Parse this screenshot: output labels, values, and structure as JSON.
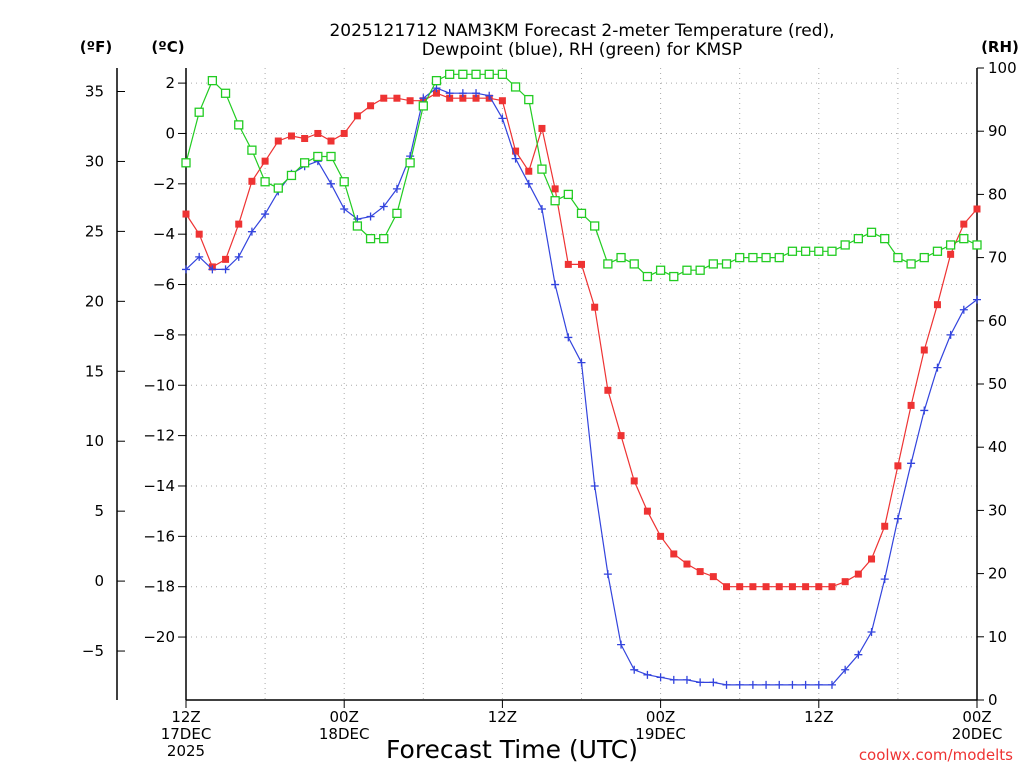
{
  "chart_data": {
    "type": "line",
    "title": [
      "2025121712 NAM3KM Forecast 2-meter Temperature (red),",
      "Dewpoint (blue), RH (green) for KMSP"
    ],
    "xlabel": "Forecast Time (UTC)",
    "credit": "coolwx.com/modelts",
    "units": {
      "fahrenheit": "(ºF)",
      "celsius": "(ºC)",
      "rh": "(RH)"
    },
    "hour_range": [
      0,
      60
    ],
    "celsius_range": [
      -22.5,
      2.6
    ],
    "rh_range": [
      0,
      100
    ],
    "x_ticks": [
      {
        "hour": 0,
        "lines": [
          "12Z",
          "17DEC",
          "2025"
        ]
      },
      {
        "hour": 12,
        "lines": [
          "00Z",
          "18DEC"
        ]
      },
      {
        "hour": 24,
        "lines": [
          "12Z"
        ]
      },
      {
        "hour": 36,
        "lines": [
          "00Z",
          "19DEC"
        ]
      },
      {
        "hour": 48,
        "lines": [
          "12Z"
        ]
      },
      {
        "hour": 60,
        "lines": [
          "00Z",
          "20DEC"
        ]
      }
    ],
    "celsius_ticks": [
      2,
      0,
      -2,
      -4,
      -6,
      -8,
      -10,
      -12,
      -14,
      -16,
      -18,
      -20
    ],
    "fahrenheit_ticks": [
      35,
      30,
      25,
      20,
      15,
      10,
      5,
      0,
      -5
    ],
    "rh_ticks": [
      0,
      10,
      20,
      30,
      40,
      50,
      60,
      70,
      80,
      90,
      100
    ],
    "series": [
      {
        "name": "2-meter Temperature",
        "unit": "C",
        "color": "#ee3333",
        "marker": "filled-square",
        "values": [
          -3.2,
          -4.0,
          -5.3,
          -5.0,
          -3.6,
          -1.9,
          -1.1,
          -0.3,
          -0.1,
          -0.2,
          0.0,
          -0.3,
          0.0,
          0.7,
          1.1,
          1.4,
          1.4,
          1.3,
          1.3,
          1.6,
          1.4,
          1.4,
          1.4,
          1.4,
          1.3,
          -0.7,
          -1.5,
          0.2,
          -2.2,
          -5.2,
          -5.2,
          -6.9,
          -10.2,
          -12.0,
          -13.8,
          -15.0,
          -16.0,
          -16.7,
          -17.1,
          -17.4,
          -17.6,
          -18.0,
          -18.0,
          -18.0,
          -18.0,
          -18.0,
          -18.0,
          -18.0,
          -18.0,
          -18.0,
          -17.8,
          -17.5,
          -16.9,
          -15.6,
          -13.2,
          -10.8,
          -8.6,
          -6.8,
          -4.8,
          -3.6,
          -3.0
        ]
      },
      {
        "name": "Dewpoint",
        "unit": "C",
        "color": "#3344dd",
        "marker": "plus",
        "values": [
          -5.4,
          -4.9,
          -5.4,
          -5.4,
          -4.9,
          -3.9,
          -3.2,
          -2.3,
          -1.6,
          -1.3,
          -1.1,
          -2.0,
          -3.0,
          -3.4,
          -3.3,
          -2.9,
          -2.2,
          -0.9,
          1.4,
          1.8,
          1.6,
          1.6,
          1.6,
          1.5,
          0.6,
          -1.0,
          -2.0,
          -3.0,
          -6.0,
          -8.1,
          -9.1,
          -14.0,
          -17.5,
          -20.3,
          -21.3,
          -21.5,
          -21.6,
          -21.7,
          -21.7,
          -21.8,
          -21.8,
          -21.9,
          -21.9,
          -21.9,
          -21.9,
          -21.9,
          -21.9,
          -21.9,
          -21.9,
          -21.9,
          -21.3,
          -20.7,
          -19.8,
          -17.7,
          -15.3,
          -13.1,
          -11.0,
          -9.3,
          -8.0,
          -7.0,
          -6.6
        ]
      },
      {
        "name": "Relative Humidity",
        "unit": "%",
        "color": "#22cc22",
        "marker": "open-square",
        "values": [
          85,
          93,
          98,
          96,
          91,
          87,
          82,
          81,
          83,
          85,
          86,
          86,
          82,
          75,
          73,
          73,
          77,
          85,
          94,
          98,
          99,
          99,
          99,
          99,
          99,
          97,
          95,
          84,
          79,
          80,
          77,
          75,
          69,
          70,
          69,
          67,
          68,
          67,
          68,
          68,
          69,
          69,
          70,
          70,
          70,
          70,
          71,
          71,
          71,
          71,
          72,
          73,
          74,
          73,
          70,
          69,
          70,
          71,
          72,
          73,
          72
        ]
      }
    ]
  }
}
